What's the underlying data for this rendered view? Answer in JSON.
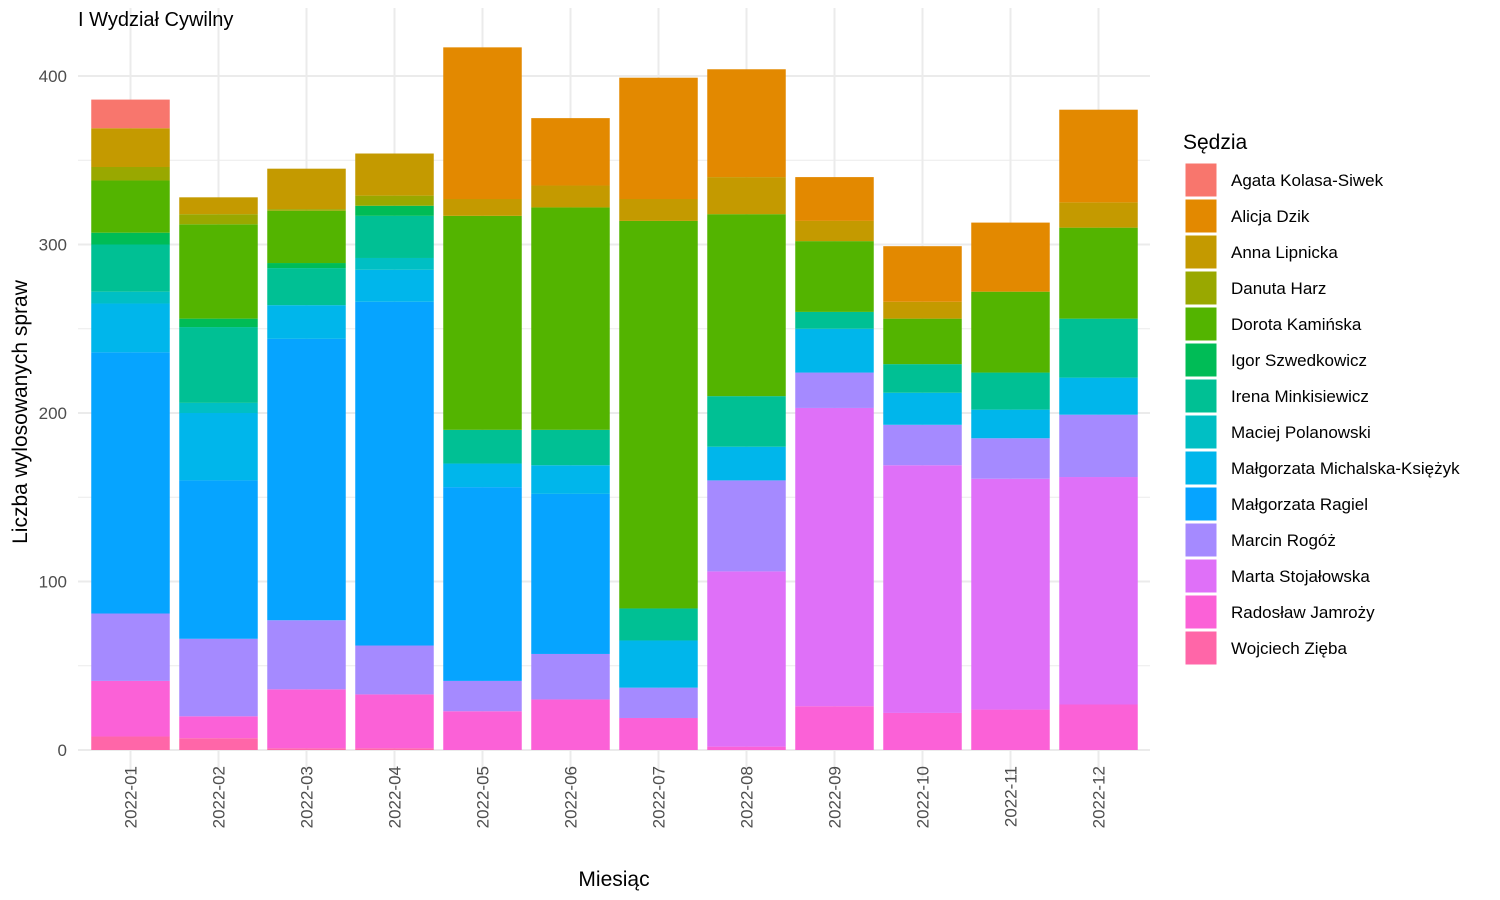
{
  "chart_data": {
    "type": "bar",
    "stacked": true,
    "title": "I Wydział Cywilny",
    "xlabel": "Miesiąc",
    "ylabel": "Liczba wylosowanych spraw",
    "ylim": [
      0,
      430
    ],
    "yticks": [
      0,
      100,
      200,
      300,
      400
    ],
    "grid": true,
    "legend_title": "Sędzia",
    "legend_position": "right",
    "categories": [
      "2022-01",
      "2022-02",
      "2022-03",
      "2022-04",
      "2022-05",
      "2022-06",
      "2022-07",
      "2022-08",
      "2022-09",
      "2022-10",
      "2022-11",
      "2022-12"
    ],
    "series": [
      {
        "name": "Agata Kolasa-Siwek",
        "color": "#F8766D",
        "values": [
          17,
          0,
          0,
          0,
          0,
          0,
          0,
          0,
          0,
          0,
          0,
          0
        ]
      },
      {
        "name": "Alicja Dzik",
        "color": "#E38900",
        "values": [
          0,
          0,
          0,
          0,
          90,
          40,
          72,
          64,
          26,
          33,
          41,
          55
        ]
      },
      {
        "name": "Anna Lipnicka",
        "color": "#C49A00",
        "values": [
          23,
          10,
          24,
          25,
          10,
          13,
          13,
          22,
          12,
          10,
          0,
          15
        ]
      },
      {
        "name": "Danuta Harz",
        "color": "#99A800",
        "values": [
          8,
          6,
          1,
          6,
          0,
          0,
          0,
          0,
          0,
          0,
          0,
          0
        ]
      },
      {
        "name": "Dorota Kamińska",
        "color": "#53B400",
        "values": [
          31,
          56,
          31,
          0,
          127,
          132,
          230,
          108,
          42,
          27,
          48,
          54
        ]
      },
      {
        "name": "Igor Szwedkowicz",
        "color": "#00BC56",
        "values": [
          7,
          5,
          3,
          6,
          0,
          0,
          0,
          0,
          0,
          0,
          0,
          0
        ]
      },
      {
        "name": "Irena Minkisiewicz",
        "color": "#00C094",
        "values": [
          28,
          45,
          22,
          25,
          20,
          21,
          19,
          30,
          10,
          17,
          22,
          35
        ]
      },
      {
        "name": "Maciej Polanowski",
        "color": "#00BFC4",
        "values": [
          7,
          6,
          0,
          7,
          0,
          0,
          0,
          0,
          0,
          0,
          0,
          0
        ]
      },
      {
        "name": "Małgorzata Michalska-Księżyk",
        "color": "#00B6EB",
        "values": [
          29,
          40,
          20,
          19,
          14,
          17,
          28,
          20,
          26,
          19,
          17,
          22
        ]
      },
      {
        "name": "Małgorzata Ragiel",
        "color": "#06A4FF",
        "values": [
          155,
          94,
          167,
          204,
          115,
          95,
          0,
          0,
          0,
          0,
          0,
          0
        ]
      },
      {
        "name": "Marcin Rogóż",
        "color": "#A58AFF",
        "values": [
          40,
          46,
          41,
          29,
          18,
          27,
          18,
          54,
          21,
          24,
          24,
          37
        ]
      },
      {
        "name": "Marta Stojałowska",
        "color": "#DF70F8",
        "values": [
          0,
          0,
          0,
          0,
          0,
          0,
          0,
          104,
          177,
          147,
          137,
          135
        ]
      },
      {
        "name": "Radosław Jamroży",
        "color": "#FB61D7",
        "values": [
          33,
          13,
          35,
          32,
          23,
          30,
          19,
          2,
          26,
          22,
          24,
          27
        ]
      },
      {
        "name": "Wojciech Zięba",
        "color": "#FF66A8",
        "values": [
          8,
          7,
          1,
          1,
          0,
          0,
          0,
          0,
          0,
          0,
          0,
          0
        ]
      }
    ]
  }
}
